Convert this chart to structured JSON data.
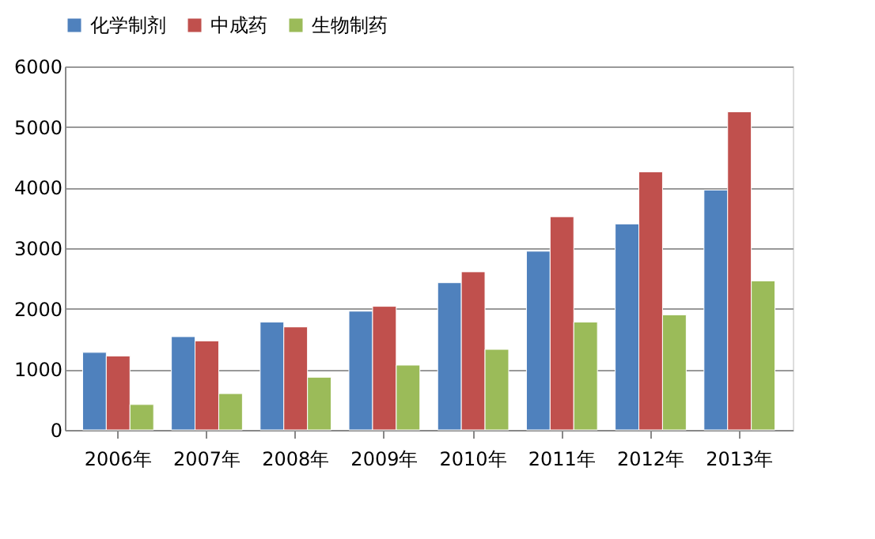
{
  "chart_data": {
    "type": "bar",
    "categories": [
      "2006年",
      "2007年",
      "2008年",
      "2009年",
      "2010年",
      "2011年",
      "2012年",
      "2013年"
    ],
    "series": [
      {
        "name": "化学制剂",
        "color": "#4f81bd",
        "values": [
          1280,
          1540,
          1780,
          1960,
          2430,
          2950,
          3400,
          3960
        ]
      },
      {
        "name": "中成药",
        "color": "#c0504d",
        "values": [
          1220,
          1470,
          1700,
          2040,
          2610,
          3520,
          4260,
          5250
        ]
      },
      {
        "name": "生物制药",
        "color": "#9bbb59",
        "values": [
          420,
          600,
          870,
          1070,
          1330,
          1780,
          1900,
          2460
        ]
      }
    ],
    "ylim": [
      0,
      6000
    ],
    "yticks": [
      0,
      1000,
      2000,
      3000,
      4000,
      5000,
      6000
    ],
    "grid": "y",
    "legend": "top"
  }
}
